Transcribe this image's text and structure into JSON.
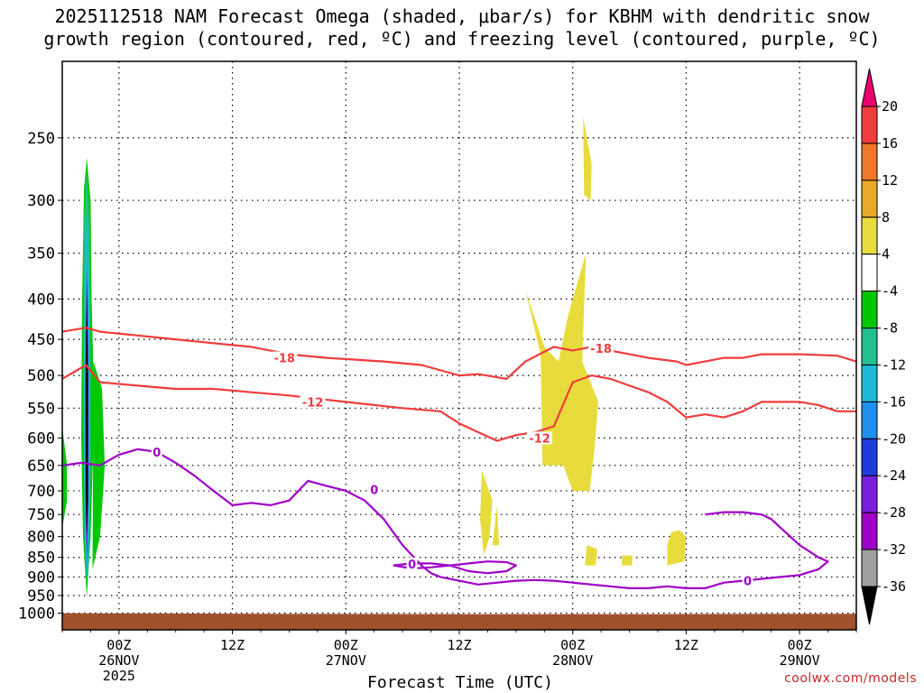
{
  "title": {
    "line1": "2025112518 NAM Forecast Omega (shaded, μbar/s) for KBHM with dendritic snow",
    "line2": "growth region (contoured, red, ºC) and freezing level (contoured, purple, ºC)"
  },
  "watermark": "coolwx.com/models",
  "chart_data": {
    "type": "heatmap",
    "title": "2025112518 NAM Forecast Omega (shaded, μbar/s) for KBHM with dendritic snow growth region (contoured, red, ºC) and freezing level (contoured, purple, ºC)",
    "xlabel": "Forecast Time (UTC)",
    "ylabel": "",
    "x_unit": "forecast hours from 2025-11-25 18Z",
    "xlim": [
      0,
      84
    ],
    "ylim": [
      1050,
      200
    ],
    "y_scale": "log-pressure",
    "grid": true,
    "y_ticks": [
      250,
      300,
      350,
      400,
      450,
      500,
      550,
      600,
      650,
      700,
      750,
      800,
      850,
      900,
      950,
      1000
    ],
    "x_ticks": [
      {
        "hour": 6,
        "line1": "00Z",
        "line2": "26NOV",
        "line3": "2025"
      },
      {
        "hour": 18,
        "line1": "12Z",
        "line2": "",
        "line3": ""
      },
      {
        "hour": 30,
        "line1": "00Z",
        "line2": "27NOV",
        "line3": ""
      },
      {
        "hour": 42,
        "line1": "12Z",
        "line2": "",
        "line3": ""
      },
      {
        "hour": 54,
        "line1": "00Z",
        "line2": "28NOV",
        "line3": ""
      },
      {
        "hour": 66,
        "line1": "12Z",
        "line2": "",
        "line3": ""
      },
      {
        "hour": 78,
        "line1": "00Z",
        "line2": "29NOV",
        "line3": ""
      }
    ],
    "colorbar": {
      "levels": [
        "20",
        "16",
        "12",
        "8",
        "4",
        "-4",
        "-8",
        "-12",
        "-16",
        "-20",
        "-24",
        "-28",
        "-32",
        "-36"
      ],
      "colors": [
        "#e8006e",
        "#f03c3c",
        "#f07828",
        "#e8a828",
        "#e8dc3c",
        "#ffffff",
        "#00c800",
        "#20c090",
        "#20b8d8",
        "#1e90f0",
        "#1e3cdc",
        "#7a1ee0",
        "#a000c8",
        "#a0a0a0",
        "#000000"
      ]
    },
    "ground_pressure_hpa": [
      1000,
      1002,
      1003,
      1003,
      1002
    ],
    "omega_regions": [
      {
        "level": "-8",
        "color": "#00c800",
        "poly": [
          [
            2.6,
            265
          ],
          [
            3.0,
            300
          ],
          [
            3.1,
            400
          ],
          [
            3.3,
            500
          ],
          [
            3.3,
            600
          ],
          [
            3.0,
            800
          ],
          [
            2.6,
            955
          ],
          [
            2.2,
            800
          ],
          [
            2.0,
            600
          ],
          [
            2.1,
            400
          ],
          [
            2.3,
            290
          ]
        ]
      },
      {
        "level": "-8",
        "color": "#00c800",
        "poly": [
          [
            3.3,
            480
          ],
          [
            4.2,
            520
          ],
          [
            4.5,
            650
          ],
          [
            4.0,
            800
          ],
          [
            3.2,
            880
          ]
        ]
      },
      {
        "level": "-8",
        "color": "#00c800",
        "poly": [
          [
            0,
            580
          ],
          [
            0.5,
            650
          ],
          [
            0.5,
            720
          ],
          [
            0,
            780
          ]
        ]
      },
      {
        "level": "-12",
        "color": "#20c090",
        "poly": [
          [
            2.6,
            275
          ],
          [
            2.9,
            330
          ],
          [
            3.0,
            500
          ],
          [
            3.0,
            700
          ],
          [
            2.7,
            920
          ],
          [
            2.3,
            700
          ],
          [
            2.2,
            500
          ],
          [
            2.3,
            320
          ]
        ]
      },
      {
        "level": "-16",
        "color": "#20b8d8",
        "poly": [
          [
            2.6,
            320
          ],
          [
            2.85,
            400
          ],
          [
            2.9,
            600
          ],
          [
            2.8,
            850
          ],
          [
            2.6,
            910
          ],
          [
            2.35,
            800
          ],
          [
            2.3,
            600
          ],
          [
            2.4,
            380
          ]
        ]
      },
      {
        "level": "-20",
        "color": "#1e90f0",
        "poly": [
          [
            2.6,
            350
          ],
          [
            2.8,
            450
          ],
          [
            2.8,
            700
          ],
          [
            2.7,
            880
          ],
          [
            2.45,
            800
          ],
          [
            2.4,
            550
          ]
        ]
      },
      {
        "level": "-28",
        "color": "#a000c8",
        "poly": [
          [
            2.6,
            370
          ],
          [
            2.75,
            500
          ],
          [
            2.75,
            700
          ],
          [
            2.6,
            850
          ],
          [
            2.45,
            700
          ],
          [
            2.45,
            500
          ]
        ]
      },
      {
        "level": "-36",
        "color": "#000000",
        "poly": [
          [
            2.6,
            380
          ],
          [
            2.72,
            500
          ],
          [
            2.72,
            720
          ],
          [
            2.6,
            800
          ],
          [
            2.48,
            700
          ],
          [
            2.48,
            500
          ]
        ]
      },
      {
        "level": "4",
        "color": "#e8dc3c",
        "poly": [
          [
            49,
            390
          ],
          [
            51,
            460
          ],
          [
            52.5,
            480
          ],
          [
            53.5,
            420
          ],
          [
            55.4,
            350
          ],
          [
            55,
            480
          ],
          [
            56.7,
            540
          ],
          [
            56.3,
            620
          ],
          [
            55.8,
            700
          ],
          [
            54,
            700
          ],
          [
            53,
            650
          ],
          [
            50.8,
            650
          ],
          [
            50.7,
            540
          ],
          [
            50.6,
            470
          ]
        ]
      },
      {
        "level": "4",
        "color": "#e8dc3c",
        "poly": [
          [
            55.1,
            235
          ],
          [
            56,
            270
          ],
          [
            55.9,
            300
          ],
          [
            55.2,
            295
          ]
        ]
      },
      {
        "level": "4",
        "color": "#e8dc3c",
        "poly": [
          [
            44.4,
            660
          ],
          [
            45.5,
            720
          ],
          [
            45.2,
            800
          ],
          [
            44.6,
            845
          ],
          [
            44.2,
            760
          ]
        ]
      },
      {
        "level": "4",
        "color": "#e8dc3c",
        "poly": [
          [
            46,
            730
          ],
          [
            46.2,
            820
          ],
          [
            45.5,
            820
          ]
        ]
      },
      {
        "level": "4",
        "color": "#e8dc3c",
        "poly": [
          [
            55.5,
            820
          ],
          [
            56.6,
            830
          ],
          [
            56.4,
            870
          ],
          [
            55.3,
            870
          ]
        ]
      },
      {
        "level": "4",
        "color": "#e8dc3c",
        "poly": [
          [
            59.2,
            845
          ],
          [
            60.3,
            845
          ],
          [
            60.3,
            870
          ],
          [
            59.2,
            870
          ]
        ]
      },
      {
        "level": "4",
        "color": "#e8dc3c",
        "poly": [
          [
            64.4,
            790
          ],
          [
            65.3,
            785
          ],
          [
            66,
            800
          ],
          [
            65.8,
            860
          ],
          [
            64,
            870
          ],
          [
            64,
            820
          ]
        ]
      }
    ],
    "series": [
      {
        "name": "-18",
        "color": "#f03c3c",
        "x": [
          0,
          2.5,
          4,
          8,
          12,
          16,
          20,
          24,
          28,
          34,
          38,
          42,
          44,
          47,
          49,
          52,
          54,
          56,
          58,
          60,
          62,
          65,
          66,
          68,
          70,
          72,
          74,
          78,
          82,
          84
        ],
        "y": [
          440,
          435,
          440,
          445,
          450,
          455,
          460,
          470,
          475,
          480,
          485,
          500,
          498,
          505,
          480,
          460,
          465,
          460,
          465,
          470,
          475,
          480,
          485,
          480,
          475,
          475,
          470,
          470,
          472,
          480
        ]
      },
      {
        "name": "-12",
        "color": "#f03c3c",
        "x": [
          0,
          2.5,
          4,
          8,
          12,
          16,
          20,
          24,
          30,
          36,
          40,
          42,
          44,
          46,
          48,
          50,
          52,
          54,
          56,
          58,
          60,
          62,
          64,
          66,
          68,
          70,
          72,
          74,
          76,
          78,
          80,
          82,
          84
        ],
        "y": [
          505,
          485,
          510,
          515,
          520,
          520,
          525,
          530,
          540,
          550,
          555,
          575,
          590,
          605,
          595,
          590,
          580,
          510,
          500,
          505,
          515,
          525,
          540,
          565,
          560,
          565,
          555,
          540,
          540,
          540,
          545,
          555,
          555
        ]
      },
      {
        "name": "0",
        "color": "#a000c8",
        "x": [
          0,
          2,
          4,
          6,
          8,
          10,
          12,
          14,
          16,
          18,
          20,
          22,
          24,
          26,
          28,
          30,
          32,
          34,
          36,
          38,
          39,
          40,
          42,
          44,
          46,
          48,
          50,
          52,
          54,
          56,
          58,
          60,
          62,
          64,
          66,
          68,
          70,
          72,
          74,
          76,
          78,
          80,
          81,
          80,
          78,
          76,
          75,
          74,
          72,
          70,
          68
        ],
        "y": [
          650,
          645,
          650,
          630,
          620,
          625,
          645,
          670,
          700,
          730,
          725,
          730,
          720,
          680,
          690,
          700,
          720,
          760,
          820,
          870,
          890,
          900,
          910,
          920,
          915,
          910,
          908,
          910,
          915,
          920,
          925,
          930,
          930,
          925,
          930,
          930,
          915,
          910,
          905,
          900,
          895,
          880,
          860,
          850,
          820,
          780,
          760,
          750,
          745,
          745,
          750
        ]
      },
      {
        "name": "0",
        "color": "#a000c8",
        "x": [
          35,
          37,
          39,
          41,
          43,
          45,
          47,
          48,
          47,
          45,
          43,
          41,
          39,
          37,
          35
        ],
        "y": [
          870,
          865,
          865,
          870,
          885,
          890,
          885,
          870,
          862,
          860,
          865,
          870,
          875,
          878,
          870
        ]
      }
    ],
    "contour_labels": [
      {
        "text": "-18",
        "x": 23.5,
        "y": 475,
        "color": "#f03c3c"
      },
      {
        "text": "-18",
        "x": 57,
        "y": 462,
        "color": "#f03c3c"
      },
      {
        "text": "-12",
        "x": 26.5,
        "y": 540,
        "color": "#f03c3c"
      },
      {
        "text": "-12",
        "x": 50.5,
        "y": 600,
        "color": "#f03c3c"
      },
      {
        "text": "0",
        "x": 10,
        "y": 625,
        "color": "#a000c8"
      },
      {
        "text": "0",
        "x": 33,
        "y": 697,
        "color": "#a000c8"
      },
      {
        "text": "0",
        "x": 37,
        "y": 866,
        "color": "#a000c8"
      },
      {
        "text": "0",
        "x": 72.5,
        "y": 910,
        "color": "#a000c8"
      }
    ]
  }
}
